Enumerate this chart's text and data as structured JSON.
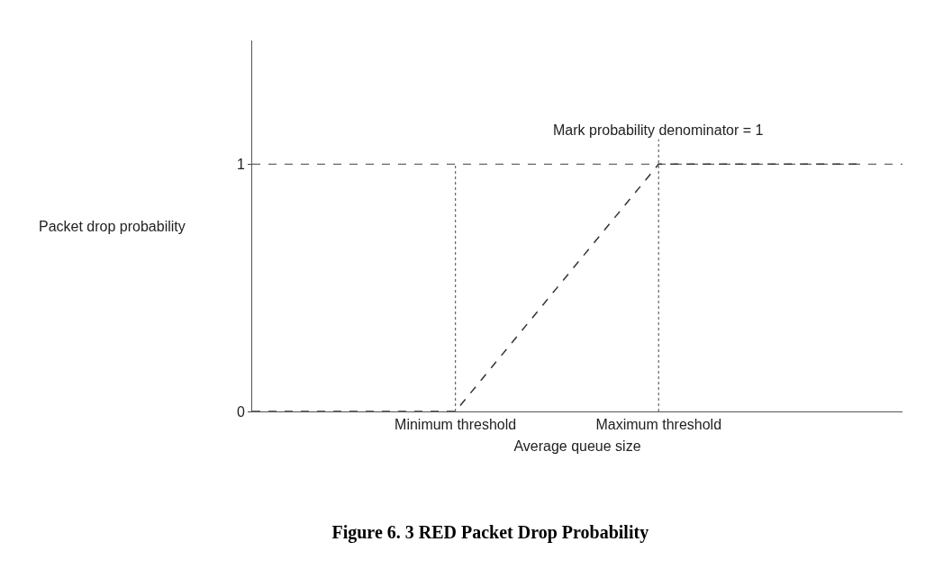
{
  "chart_data": {
    "type": "line",
    "title": "Figure 6. 3 RED Packet Drop Probability",
    "xlabel": "Average queue size",
    "ylabel": "Packet drop probability",
    "categories": [
      null,
      "Minimum threshold",
      "Maximum threshold",
      null
    ],
    "series": [
      {
        "color": "#333333",
        "values": [
          0,
          0,
          1,
          1
        ]
      }
    ],
    "ylim": [
      0,
      1.5
    ],
    "yticks": [
      0,
      1
    ],
    "grid": false,
    "marker": "none",
    "line_style": "dashed",
    "ref_lines": [
      {
        "axis": "y",
        "value": 1,
        "line_style": "dashed",
        "color": "#666666"
      },
      {
        "axis": "x",
        "value": "Minimum threshold",
        "line_style": "dotted",
        "color": "#666666"
      },
      {
        "axis": "x",
        "value": "Maximum threshold",
        "label": "Mark probability denominator = 1",
        "line_style": "dotted",
        "color": "#666666"
      }
    ]
  }
}
